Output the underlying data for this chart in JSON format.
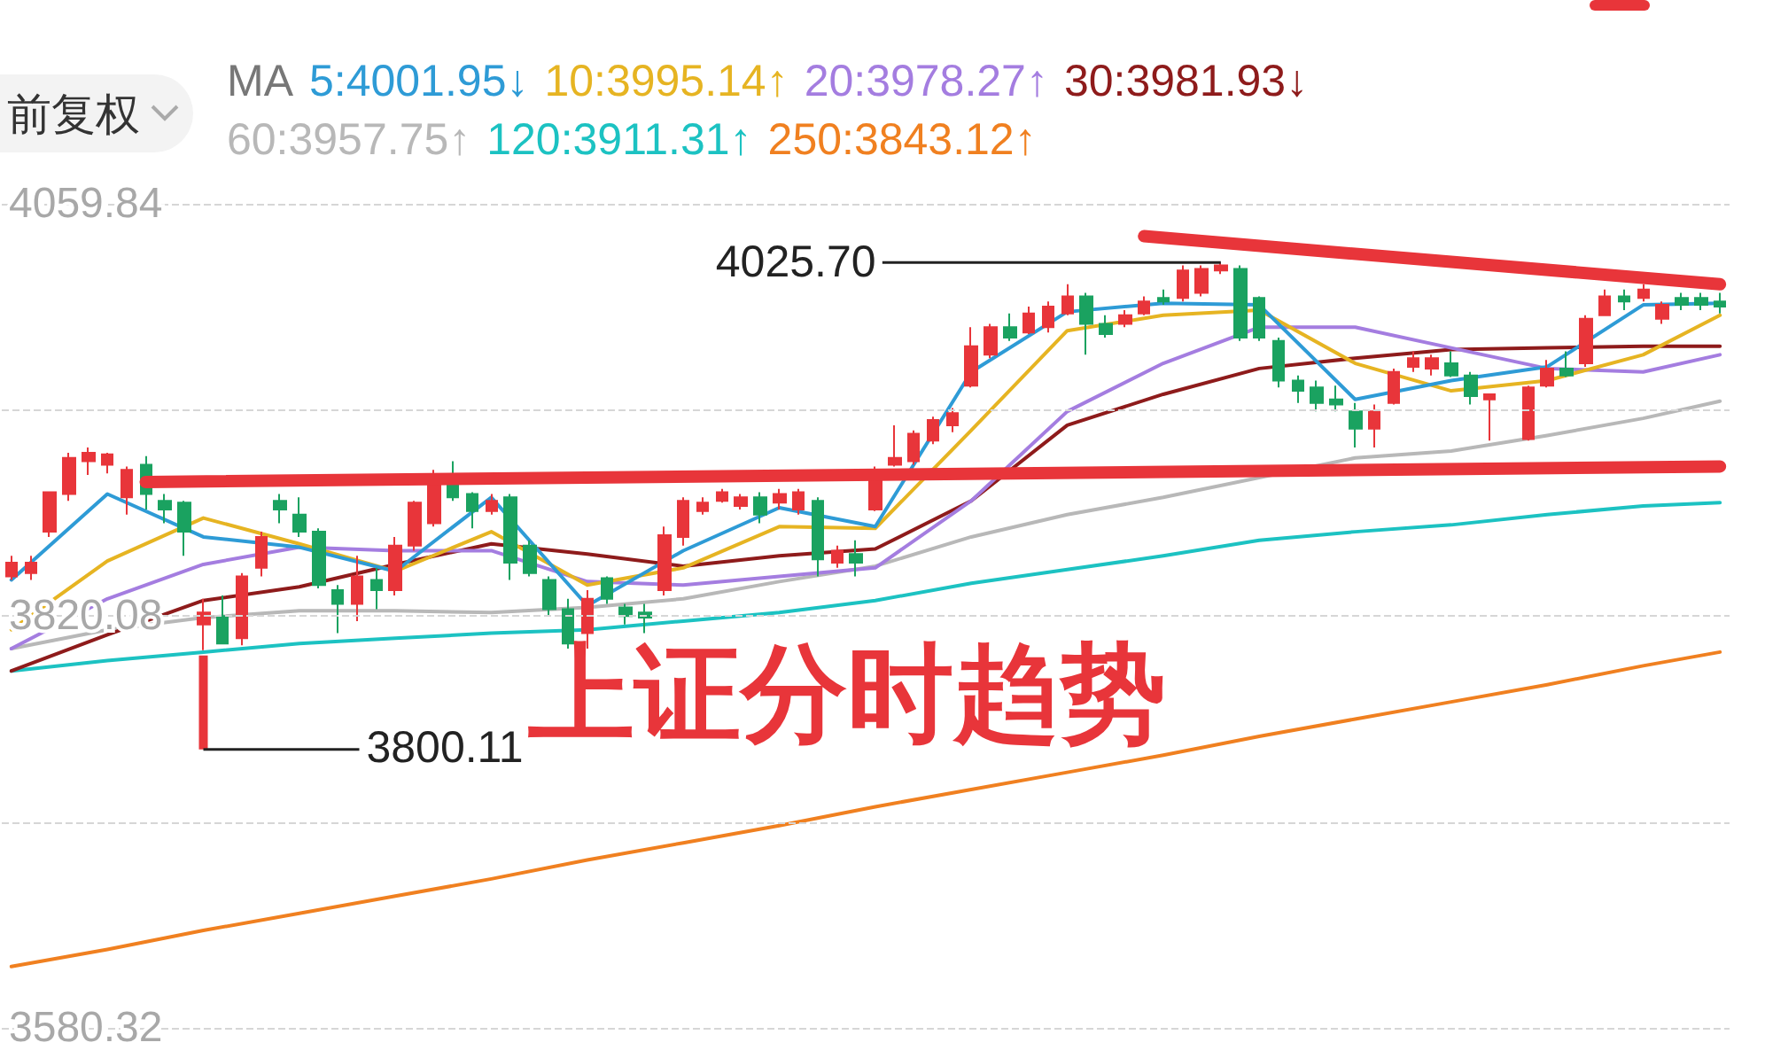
{
  "chart_data": {
    "type": "candlestick",
    "legend": "top left",
    "legend_title": "MA",
    "grid": "y",
    "annotations": [
      "前复权",
      "4025.70",
      "3800.11",
      "上证分时趋势"
    ],
    "categories": [
      null,
      null,
      null,
      null,
      null,
      null,
      null,
      null,
      null,
      null,
      null,
      null,
      null,
      null,
      null,
      null,
      null,
      null,
      null,
      null,
      null,
      null,
      null,
      null,
      null,
      null,
      null,
      null,
      null,
      null,
      null,
      null,
      null,
      null,
      null,
      null,
      null,
      null,
      null,
      null,
      null,
      null,
      null,
      null,
      null,
      null,
      null,
      null,
      null,
      null,
      null,
      null,
      null,
      null,
      null,
      null,
      null,
      null,
      null,
      null,
      null,
      null,
      null,
      null,
      null,
      null,
      null,
      null,
      null,
      null,
      null,
      null,
      null,
      null,
      null,
      null,
      null,
      null,
      null,
      null,
      null,
      null,
      null,
      null,
      null,
      null,
      null,
      null,
      null,
      null
    ],
    "ylim": [
      3580.32,
      4059.84
    ],
    "yticks": [
      4059.84,
      {
        "value": 3939.96,
        "label": null
      },
      3820.08,
      {
        "value": 3700.2,
        "label": null
      },
      3580.32
    ],
    "series": [
      {
        "type": "line",
        "name": "250:3843.12↑",
        "color": "#f08020",
        "values": [
          3616,
          null,
          null,
          null,
          null,
          3626,
          null,
          null,
          null,
          null,
          3637,
          null,
          null,
          null,
          null,
          3647,
          null,
          null,
          null,
          null,
          3657,
          null,
          null,
          null,
          null,
          3667,
          null,
          null,
          null,
          null,
          3678,
          null,
          null,
          null,
          null,
          3688,
          null,
          null,
          null,
          null,
          3698,
          null,
          null,
          null,
          null,
          3709,
          null,
          null,
          null,
          null,
          3719,
          null,
          null,
          null,
          null,
          3729,
          null,
          null,
          null,
          null,
          3739,
          null,
          null,
          null,
          null,
          3750,
          null,
          null,
          null,
          null,
          3760,
          null,
          null,
          null,
          null,
          3770,
          null,
          null,
          null,
          null,
          3780,
          null,
          null,
          null,
          null,
          3791,
          null,
          null,
          null,
          3799
        ]
      },
      {
        "type": "line",
        "name": "120:3911.31↑",
        "color": "#1cc2c2",
        "values": [
          3788,
          null,
          null,
          null,
          null,
          3794,
          null,
          null,
          null,
          null,
          3799,
          null,
          null,
          null,
          null,
          3804,
          null,
          null,
          null,
          null,
          3807,
          null,
          null,
          null,
          null,
          3810,
          null,
          null,
          null,
          null,
          3812,
          null,
          null,
          null,
          null,
          3817,
          null,
          null,
          null,
          null,
          3822,
          null,
          null,
          null,
          null,
          3829,
          null,
          null,
          null,
          null,
          3839,
          null,
          null,
          null,
          null,
          3847,
          null,
          null,
          null,
          null,
          3855,
          null,
          null,
          null,
          null,
          3864,
          null,
          null,
          null,
          null,
          3869,
          null,
          null,
          null,
          null,
          3873,
          null,
          null,
          null,
          null,
          3879,
          null,
          null,
          null,
          null,
          3884,
          null,
          null,
          null,
          3886
        ]
      },
      {
        "type": "line",
        "name": "60:3957.75↑",
        "color": "#b8b8b8",
        "values": [
          3801,
          null,
          null,
          null,
          null,
          3812,
          null,
          null,
          null,
          null,
          3819,
          null,
          null,
          null,
          null,
          3823,
          null,
          null,
          null,
          null,
          3823,
          null,
          null,
          null,
          null,
          3822,
          null,
          null,
          null,
          null,
          3825,
          null,
          null,
          null,
          null,
          3830,
          null,
          null,
          null,
          null,
          3840,
          null,
          null,
          null,
          null,
          3849,
          null,
          null,
          null,
          null,
          3866,
          null,
          null,
          null,
          null,
          3879,
          null,
          null,
          null,
          null,
          3889,
          null,
          null,
          null,
          null,
          null,
          null,
          null,
          null,
          null,
          3912,
          null,
          null,
          null,
          null,
          3916,
          null,
          null,
          null,
          null,
          3925,
          null,
          null,
          null,
          null,
          3935,
          null,
          null,
          null,
          3945
        ]
      },
      {
        "type": "line",
        "name": "30:3981.93↓",
        "color": "#8e1b1b",
        "values": [
          3788,
          null,
          null,
          null,
          null,
          3809,
          null,
          null,
          null,
          null,
          3829,
          null,
          null,
          null,
          null,
          3837,
          null,
          null,
          null,
          null,
          3850,
          null,
          null,
          null,
          null,
          3862,
          null,
          null,
          null,
          null,
          3856,
          null,
          null,
          null,
          null,
          3849,
          null,
          null,
          null,
          null,
          3855,
          null,
          null,
          null,
          null,
          3859,
          null,
          null,
          null,
          null,
          3887,
          null,
          null,
          null,
          null,
          3931,
          null,
          null,
          null,
          null,
          3949,
          null,
          null,
          null,
          null,
          3964,
          null,
          null,
          null,
          null,
          3970,
          null,
          null,
          null,
          null,
          3975,
          null,
          null,
          null,
          null,
          3976,
          null,
          null,
          null,
          null,
          3977,
          null,
          null,
          null,
          3977
        ]
      },
      {
        "type": "line",
        "name": "20:3978.27↑",
        "color": "#a47de0",
        "values": [
          3801,
          null,
          null,
          null,
          null,
          3830,
          null,
          null,
          null,
          null,
          3850,
          null,
          null,
          null,
          null,
          3860,
          null,
          null,
          null,
          null,
          3858,
          null,
          null,
          null,
          null,
          3858,
          null,
          null,
          null,
          null,
          3840,
          null,
          null,
          null,
          null,
          3838,
          null,
          null,
          null,
          null,
          3843,
          null,
          null,
          null,
          null,
          3848,
          null,
          null,
          null,
          null,
          3887,
          null,
          null,
          null,
          null,
          3939,
          null,
          null,
          null,
          null,
          3967,
          null,
          null,
          null,
          null,
          3988,
          null,
          null,
          null,
          null,
          3988,
          null,
          null,
          null,
          null,
          3976,
          null,
          null,
          null,
          null,
          3964,
          null,
          null,
          null,
          null,
          3962,
          null,
          null,
          null,
          3972
        ]
      },
      {
        "type": "line",
        "name": "10:3995.14↑",
        "color": "#e6b422",
        "values": [
          3812,
          null,
          null,
          null,
          null,
          3852,
          null,
          null,
          null,
          null,
          3877,
          null,
          null,
          null,
          null,
          3862,
          null,
          null,
          null,
          null,
          3846,
          null,
          null,
          null,
          null,
          3869,
          null,
          null,
          null,
          null,
          3838,
          null,
          null,
          null,
          null,
          3848,
          null,
          null,
          null,
          null,
          3872,
          null,
          null,
          null,
          null,
          3871,
          null,
          null,
          null,
          null,
          3928,
          null,
          null,
          null,
          null,
          3986,
          null,
          null,
          null,
          null,
          3995,
          null,
          null,
          null,
          null,
          3998,
          null,
          null,
          null,
          null,
          3967,
          null,
          null,
          null,
          null,
          3951,
          null,
          null,
          null,
          null,
          3957,
          null,
          null,
          null,
          null,
          3972,
          null,
          null,
          null,
          3995
        ]
      },
      {
        "type": "line",
        "name": "5:4001.95↓",
        "color": "#2e9bd6",
        "values": [
          3841,
          null,
          null,
          null,
          null,
          3891,
          null,
          null,
          null,
          null,
          3866,
          null,
          null,
          null,
          null,
          3860,
          null,
          null,
          null,
          null,
          3846,
          null,
          null,
          null,
          null,
          3889,
          null,
          null,
          null,
          null,
          3826,
          null,
          null,
          null,
          null,
          3858,
          null,
          null,
          null,
          null,
          3883,
          null,
          null,
          null,
          null,
          3872,
          null,
          null,
          null,
          null,
          3962,
          null,
          null,
          null,
          null,
          3997,
          null,
          null,
          null,
          null,
          4002,
          null,
          null,
          null,
          null,
          4001,
          null,
          null,
          null,
          null,
          3946,
          null,
          null,
          null,
          null,
          3957,
          null,
          null,
          null,
          null,
          3965,
          null,
          null,
          null,
          null,
          4001,
          null,
          null,
          null,
          4002
        ]
      },
      {
        "colors": [
          "#e8353a",
          "#e8353a",
          "#e8353a",
          "#e8353a",
          "#e8353a",
          "#e8353a",
          "#e8353a",
          "#1aa260",
          "#1aa260",
          "#1aa260",
          "#e8353a",
          "#1aa260",
          "#e8353a",
          "#e8353a",
          "#1aa260",
          "#1aa260",
          "#1aa260",
          "#1aa260",
          "#e8353a",
          "#1aa260",
          "#e8353a",
          "#e8353a",
          "#e8353a",
          "#1aa260",
          "#1aa260",
          "#e8353a",
          "#1aa260",
          "#1aa260",
          "#1aa260",
          "#1aa260",
          "#e8353a",
          "#1aa260",
          "#1aa260",
          "#1aa260",
          "#e8353a",
          "#e8353a",
          "#e8353a",
          "#e8353a",
          "#e8353a",
          "#1aa260",
          "#e8353a",
          "#e8353a",
          "#1aa260",
          "#e8353a",
          "#1aa260",
          "#e8353a",
          "#e8353a",
          "#e8353a",
          "#e8353a",
          "#e8353a",
          "#e8353a",
          "#e8353a",
          "#1aa260",
          "#e8353a",
          "#e8353a",
          "#e8353a",
          "#1aa260",
          "#1aa260",
          "#e8353a",
          "#e8353a",
          "#1aa260",
          "#e8353a",
          "#e8353a",
          "#e8353a",
          "#1aa260",
          "#1aa260",
          "#1aa260",
          "#1aa260",
          "#1aa260",
          "#1aa260",
          "#1aa260",
          "#e8353a",
          "#e8353a",
          "#e8353a",
          "#e8353a",
          "#1aa260",
          "#1aa260",
          "#e8353a",
          null,
          "#e8353a",
          "#e8353a",
          "#1aa260",
          "#e8353a",
          "#e8353a",
          "#1aa260",
          "#e8353a",
          "#e8353a",
          "#1aa260",
          "#1aa260",
          "#1aa260"
        ],
        "ohlc": [
          [
            3843,
            3855,
            3841,
            3851
          ],
          [
            3845,
            3855,
            3841,
            3851
          ],
          [
            3869,
            3892,
            3866,
            3892
          ],
          [
            3891,
            3915,
            3887,
            3912
          ],
          [
            3910,
            3918,
            3902,
            3915
          ],
          [
            3908,
            3915,
            3903,
            3914
          ],
          [
            3889,
            3907,
            3879,
            3905
          ],
          [
            3908,
            3913,
            3882,
            3891
          ],
          [
            3887,
            3891,
            3874,
            3882
          ],
          [
            3886,
            3887,
            3855,
            3869
          ],
          [
            3815,
            3830,
            3800.11,
            3822
          ],
          [
            3820,
            3832,
            3804,
            3804
          ],
          [
            3807,
            3845,
            3803,
            3843
          ],
          [
            3848,
            3869,
            3843,
            3866
          ],
          [
            3887,
            3891,
            3874,
            3882
          ],
          [
            3879,
            3889,
            3866,
            3869
          ],
          [
            3869,
            3871,
            3836,
            3838
          ],
          [
            3835,
            3838,
            3810,
            3827
          ],
          [
            3827,
            3855,
            3817,
            3843
          ],
          [
            3841,
            3848,
            3824,
            3835
          ],
          [
            3835,
            3866,
            3832,
            3861
          ],
          [
            3861,
            3887,
            3858,
            3886
          ],
          [
            3874,
            3905,
            3872,
            3898
          ],
          [
            3897,
            3910,
            3887,
            3889
          ],
          [
            3891,
            3892,
            3871,
            3881
          ],
          [
            3881,
            3891,
            3879,
            3887
          ],
          [
            3889,
            3891,
            3841,
            3851
          ],
          [
            3861,
            3864,
            3843,
            3845
          ],
          [
            3841,
            3843,
            3820,
            3824
          ],
          [
            3824,
            3830,
            3801,
            3804
          ],
          [
            3810,
            3835,
            3801,
            3830
          ],
          [
            3842,
            3843,
            3827,
            3830
          ],
          [
            3825,
            3827,
            3815,
            3820
          ],
          [
            3822,
            3827,
            3810,
            3819
          ],
          [
            3835,
            3872,
            3832,
            3867
          ],
          [
            3866,
            3889,
            3861,
            3887
          ],
          [
            3881,
            3889,
            3879,
            3886
          ],
          [
            3887,
            3894,
            3886,
            3892
          ],
          [
            3884,
            3891,
            3882,
            3889
          ],
          [
            3889,
            3892,
            3874,
            3879
          ],
          [
            3886,
            3894,
            3882,
            3891
          ],
          [
            3882,
            3894,
            3879,
            3892
          ],
          [
            3887,
            3889,
            3843,
            3853
          ],
          [
            3851,
            3861,
            3848,
            3858
          ],
          [
            3856,
            3864,
            3843,
            3851
          ],
          [
            3882,
            3907,
            3881,
            3903
          ],
          [
            3908,
            3931,
            3907,
            3912
          ],
          [
            3910,
            3928,
            3908,
            3926
          ],
          [
            3922,
            3936,
            3920,
            3934
          ],
          [
            3931,
            3941,
            3927,
            3938
          ],
          [
            3954,
            3988,
            3953,
            3977
          ],
          [
            3972,
            3990,
            3970,
            3988
          ],
          [
            3988,
            3996,
            3980,
            3982
          ],
          [
            3985,
            4000,
            3984,
            3996
          ],
          [
            3988,
            4003,
            3985,
            4000
          ],
          [
            3996,
            4013,
            3995,
            4006
          ],
          [
            4006,
            4008,
            3972,
            3990
          ],
          [
            3990,
            3995,
            3982,
            3984
          ],
          [
            3990,
            3998,
            3988,
            3995
          ],
          [
            3996,
            4006,
            3995,
            4003
          ],
          [
            4005,
            4010,
            4001,
            4003
          ],
          [
            4005,
            4024,
            4003,
            4021
          ],
          [
            4008,
            4024,
            4006,
            4022
          ],
          [
            4021,
            4025.7,
            4019,
            4024
          ],
          [
            4022,
            4024,
            3980,
            3982
          ],
          [
            4005,
            4006,
            3980,
            3982
          ],
          [
            3980,
            3982,
            3953,
            3957
          ],
          [
            3957,
            3960,
            3944,
            3951
          ],
          [
            3953,
            3957,
            3939,
            3944
          ],
          [
            3946,
            3954,
            3939,
            3943
          ],
          [
            3939,
            3944,
            3918,
            3929
          ],
          [
            3929,
            3943,
            3918,
            3939
          ],
          [
            3944,
            3964,
            3943,
            3962
          ],
          [
            3965,
            3974,
            3962,
            3970
          ],
          [
            3964,
            3972,
            3960,
            3970
          ],
          [
            3967,
            3974,
            3959,
            3960
          ],
          [
            3960,
            3962,
            3943,
            3948
          ],
          [
            3946,
            3949,
            3922,
            3949
          ],
          null,
          [
            3923,
            3954,
            3922,
            3953
          ],
          [
            3954,
            3969,
            3953,
            3964
          ],
          [
            3964,
            3974,
            3959,
            3960
          ],
          [
            3967,
            3995,
            3965,
            3993
          ],
          [
            3995,
            4010,
            3995,
            4006
          ],
          [
            4006,
            4010,
            3998,
            4003
          ],
          [
            4005,
            4013,
            4003,
            4010
          ],
          [
            3993,
            4003,
            3990,
            4001
          ],
          [
            4005,
            4008,
            3998,
            4001
          ],
          [
            4005,
            4008,
            3998,
            4001
          ],
          [
            4003,
            4008,
            3996,
            4000
          ]
        ]
      },
      {
        "type": "line",
        "color": "#e8353a",
        "values": [
          null,
          null,
          null,
          null,
          null,
          null,
          null,
          null,
          null,
          null,
          null,
          null,
          null,
          null,
          null,
          null,
          null,
          null,
          null,
          null,
          null,
          null,
          null,
          null,
          null,
          null,
          null,
          null,
          null,
          null,
          null,
          null,
          null,
          null,
          null,
          null,
          null,
          null,
          null,
          null,
          null,
          null,
          null,
          null,
          null,
          null,
          null,
          null,
          null,
          null,
          null,
          null,
          null,
          null,
          null,
          null,
          null,
          null,
          null,
          4041,
          null,
          null,
          null,
          null,
          null,
          null,
          null,
          null,
          null,
          null,
          null,
          null,
          null,
          null,
          null,
          null,
          null,
          null,
          null,
          null,
          null,
          null,
          null,
          null,
          null,
          null,
          null,
          null,
          null,
          4013
        ]
      },
      {
        "type": "line",
        "color": "#e8353a",
        "values": [
          null,
          null,
          null,
          null,
          null,
          null,
          null,
          3898,
          null,
          null,
          null,
          null,
          null,
          null,
          null,
          null,
          null,
          null,
          null,
          null,
          null,
          null,
          null,
          null,
          null,
          null,
          null,
          null,
          null,
          null,
          null,
          null,
          null,
          null,
          null,
          null,
          null,
          null,
          null,
          null,
          null,
          null,
          null,
          null,
          null,
          null,
          null,
          null,
          null,
          null,
          null,
          null,
          null,
          null,
          null,
          null,
          null,
          null,
          null,
          null,
          null,
          null,
          null,
          null,
          null,
          null,
          null,
          null,
          null,
          null,
          null,
          null,
          null,
          null,
          null,
          null,
          null,
          null,
          null,
          null,
          null,
          null,
          null,
          null,
          null,
          null,
          null,
          null,
          null,
          3907
        ]
      }
    ]
  }
}
